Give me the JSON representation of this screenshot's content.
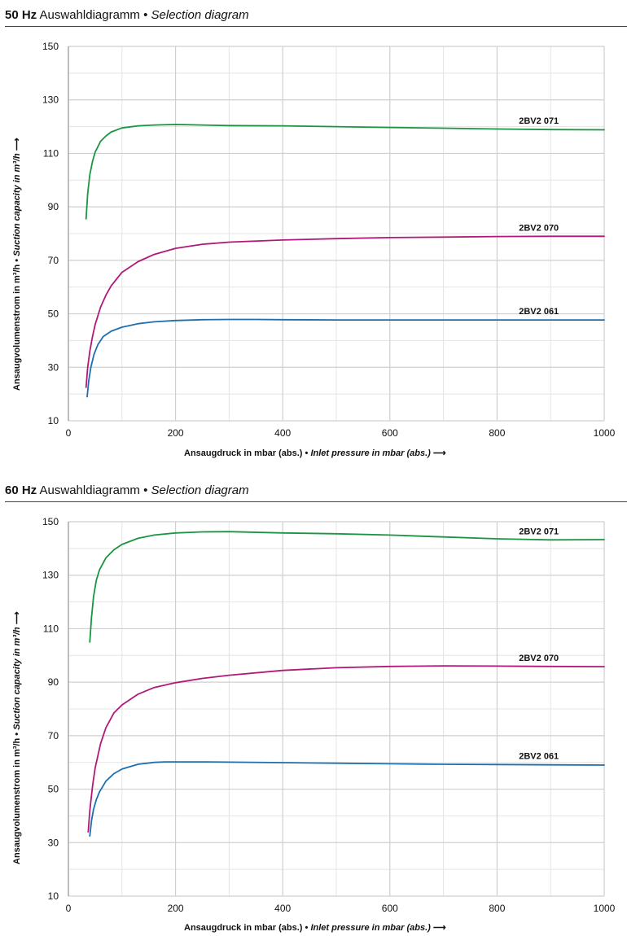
{
  "charts": [
    {
      "heading": {
        "hz": "50 Hz",
        "de": "Auswahldiagramm",
        "bullet": "•",
        "en": "Selection diagram"
      },
      "ylabel": {
        "de": "Ansaugvolumenstrom in m³/h",
        "bullet": "•",
        "en": "Suction capacity in m³/h"
      },
      "xlabel": {
        "de": "Ansaugdruck in mbar (abs.)",
        "bullet": "•",
        "en": "Inlet pressure in mbar (abs.)"
      }
    },
    {
      "heading": {
        "hz": "60 Hz",
        "de": "Auswahldiagramm",
        "bullet": "•",
        "en": "Selection diagram"
      },
      "ylabel": {
        "de": "Ansaugvolumenstrom in m³/h",
        "bullet": "•",
        "en": "Suction capacity in m³/h"
      },
      "xlabel": {
        "de": "Ansaugdruck in mbar (abs.)",
        "bullet": "•",
        "en": "Inlet pressure in mbar (abs.)"
      }
    }
  ],
  "chart_data": [
    {
      "type": "line",
      "title": "50 Hz Auswahldiagramm • Selection diagram",
      "xlabel": "Ansaugdruck in mbar (abs.) • Inlet pressure in mbar (abs.)",
      "ylabel": "Ansaugvolumenstrom in m³/h • Suction capacity in m³/h",
      "xlim": [
        0,
        1000
      ],
      "ylim": [
        10,
        150
      ],
      "xticks": [
        0,
        200,
        400,
        600,
        800,
        1000
      ],
      "yticks": [
        10,
        30,
        50,
        70,
        90,
        110,
        130,
        150
      ],
      "grid": true,
      "series": [
        {
          "name": "2BV2 071",
          "color": "#1a9641",
          "x": [
            33,
            36,
            40,
            45,
            50,
            60,
            70,
            80,
            100,
            130,
            160,
            200,
            250,
            300,
            400,
            500,
            600,
            700,
            800,
            900,
            1000
          ],
          "y": [
            85.5,
            95,
            102,
            107,
            110.5,
            114.5,
            116.5,
            118,
            119.5,
            120.3,
            120.6,
            120.8,
            120.6,
            120.4,
            120.3,
            120,
            119.7,
            119.4,
            119.1,
            118.9,
            118.8
          ]
        },
        {
          "name": "2BV2 070",
          "color": "#b0197a",
          "x": [
            33,
            36,
            40,
            45,
            50,
            60,
            70,
            80,
            100,
            130,
            160,
            200,
            250,
            300,
            400,
            500,
            600,
            700,
            800,
            900,
            1000
          ],
          "y": [
            22.5,
            30,
            36,
            41.5,
            46,
            52.5,
            57,
            60.5,
            65.5,
            69.5,
            72.2,
            74.5,
            76,
            76.8,
            77.6,
            78.1,
            78.5,
            78.7,
            78.9,
            79,
            79
          ]
        },
        {
          "name": "2BV2 061",
          "color": "#1f6fae",
          "x": [
            35,
            38,
            42,
            48,
            55,
            65,
            80,
            100,
            130,
            160,
            200,
            250,
            300,
            350,
            400,
            500,
            600,
            700,
            800,
            900,
            1000
          ],
          "y": [
            19,
            25,
            30,
            35,
            38.5,
            41.5,
            43.5,
            45,
            46.3,
            47,
            47.5,
            47.8,
            47.9,
            47.9,
            47.8,
            47.7,
            47.7,
            47.7,
            47.7,
            47.7,
            47.7
          ]
        }
      ]
    },
    {
      "type": "line",
      "title": "60 Hz Auswahldiagramm • Selection diagram",
      "xlabel": "Ansaugdruck in mbar (abs.) • Inlet pressure in mbar (abs.)",
      "ylabel": "Ansaugvolumenstrom in m³/h • Suction capacity in m³/h",
      "xlim": [
        0,
        1000
      ],
      "ylim": [
        10,
        150
      ],
      "xticks": [
        0,
        200,
        400,
        600,
        800,
        1000
      ],
      "yticks": [
        10,
        30,
        50,
        70,
        90,
        110,
        130,
        150
      ],
      "grid": true,
      "series": [
        {
          "name": "2BV2 071",
          "color": "#1a9641",
          "x": [
            40,
            43,
            47,
            52,
            58,
            70,
            85,
            100,
            130,
            160,
            200,
            250,
            300,
            400,
            500,
            600,
            700,
            800,
            900,
            1000
          ],
          "y": [
            105,
            114,
            122,
            128,
            132,
            136.5,
            139.5,
            141.5,
            143.8,
            145,
            145.8,
            146.2,
            146.3,
            145.8,
            145.5,
            145,
            144.3,
            143.6,
            143.2,
            143.3
          ]
        },
        {
          "name": "2BV2 070",
          "color": "#b0197a",
          "x": [
            37,
            40,
            45,
            50,
            60,
            70,
            85,
            100,
            130,
            160,
            200,
            250,
            300,
            400,
            500,
            600,
            700,
            800,
            900,
            1000
          ],
          "y": [
            34,
            42,
            51,
            58,
            67,
            73,
            78.5,
            81.5,
            85.5,
            88,
            89.8,
            91.4,
            92.6,
            94.4,
            95.4,
            95.9,
            96.1,
            96,
            95.9,
            95.8
          ]
        },
        {
          "name": "2BV2 061",
          "color": "#1f6fae",
          "x": [
            40,
            43,
            47,
            52,
            58,
            70,
            85,
            100,
            130,
            160,
            180,
            200,
            250,
            300,
            400,
            500,
            600,
            700,
            800,
            900,
            1000
          ],
          "y": [
            32.5,
            38,
            42.5,
            46,
            49,
            53,
            55.8,
            57.5,
            59.3,
            60,
            60.2,
            60.2,
            60.2,
            60.1,
            59.9,
            59.7,
            59.5,
            59.3,
            59.2,
            59.1,
            59
          ]
        }
      ]
    }
  ]
}
